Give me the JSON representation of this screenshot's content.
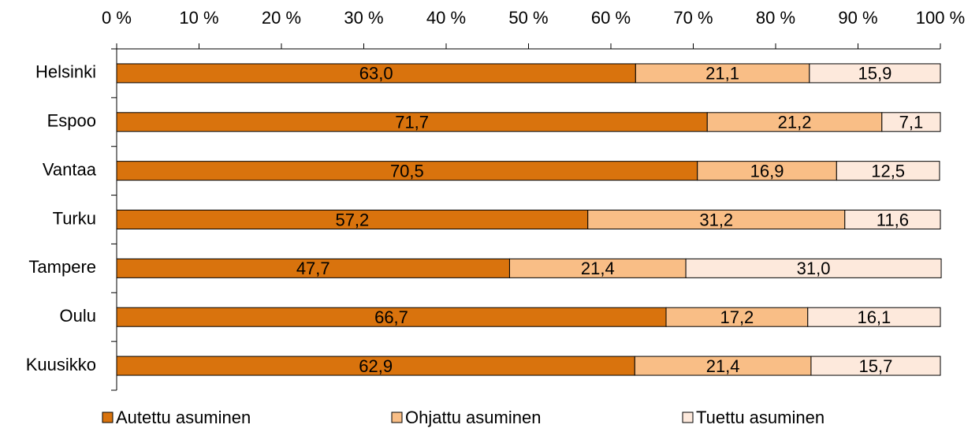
{
  "chart_data": {
    "type": "stacked-bar-horizontal",
    "categories": [
      "Helsinki",
      "Espoo",
      "Vantaa",
      "Turku",
      "Tampere",
      "Oulu",
      "Kuusikko"
    ],
    "series": [
      {
        "name": "Autettu asuminen",
        "color": "#d9730d",
        "values": [
          63.0,
          71.7,
          70.5,
          57.2,
          47.7,
          66.7,
          62.9
        ],
        "value_labels": [
          "63,0",
          "71,7",
          "70,5",
          "57,2",
          "47,7",
          "66,7",
          "62,9"
        ]
      },
      {
        "name": "Ohjattu asuminen",
        "color": "#f9be86",
        "values": [
          21.1,
          21.2,
          16.9,
          31.2,
          21.4,
          17.2,
          21.4
        ],
        "value_labels": [
          "21,1",
          "21,2",
          "16,9",
          "31,2",
          "21,4",
          "17,2",
          "21,4"
        ]
      },
      {
        "name": "Tuettu asuminen",
        "color": "#fde9dc",
        "values": [
          15.9,
          7.1,
          12.5,
          11.6,
          31.0,
          16.1,
          15.7
        ],
        "value_labels": [
          "15,9",
          "7,1",
          "12,5",
          "11,6",
          "31,0",
          "16,1",
          "15,7"
        ]
      }
    ],
    "xlim": [
      0,
      100
    ],
    "xticks": [
      {
        "value": 0,
        "label": "0 %"
      },
      {
        "value": 10,
        "label": "10 %"
      },
      {
        "value": 20,
        "label": "20 %"
      },
      {
        "value": 30,
        "label": "30 %"
      },
      {
        "value": 40,
        "label": "40 %"
      },
      {
        "value": 50,
        "label": "50 %"
      },
      {
        "value": 60,
        "label": "60 %"
      },
      {
        "value": 70,
        "label": "70 %"
      },
      {
        "value": 80,
        "label": "80 %"
      },
      {
        "value": 90,
        "label": "90 %"
      },
      {
        "value": 100,
        "label": "100 %"
      }
    ],
    "legend": "bottom"
  }
}
